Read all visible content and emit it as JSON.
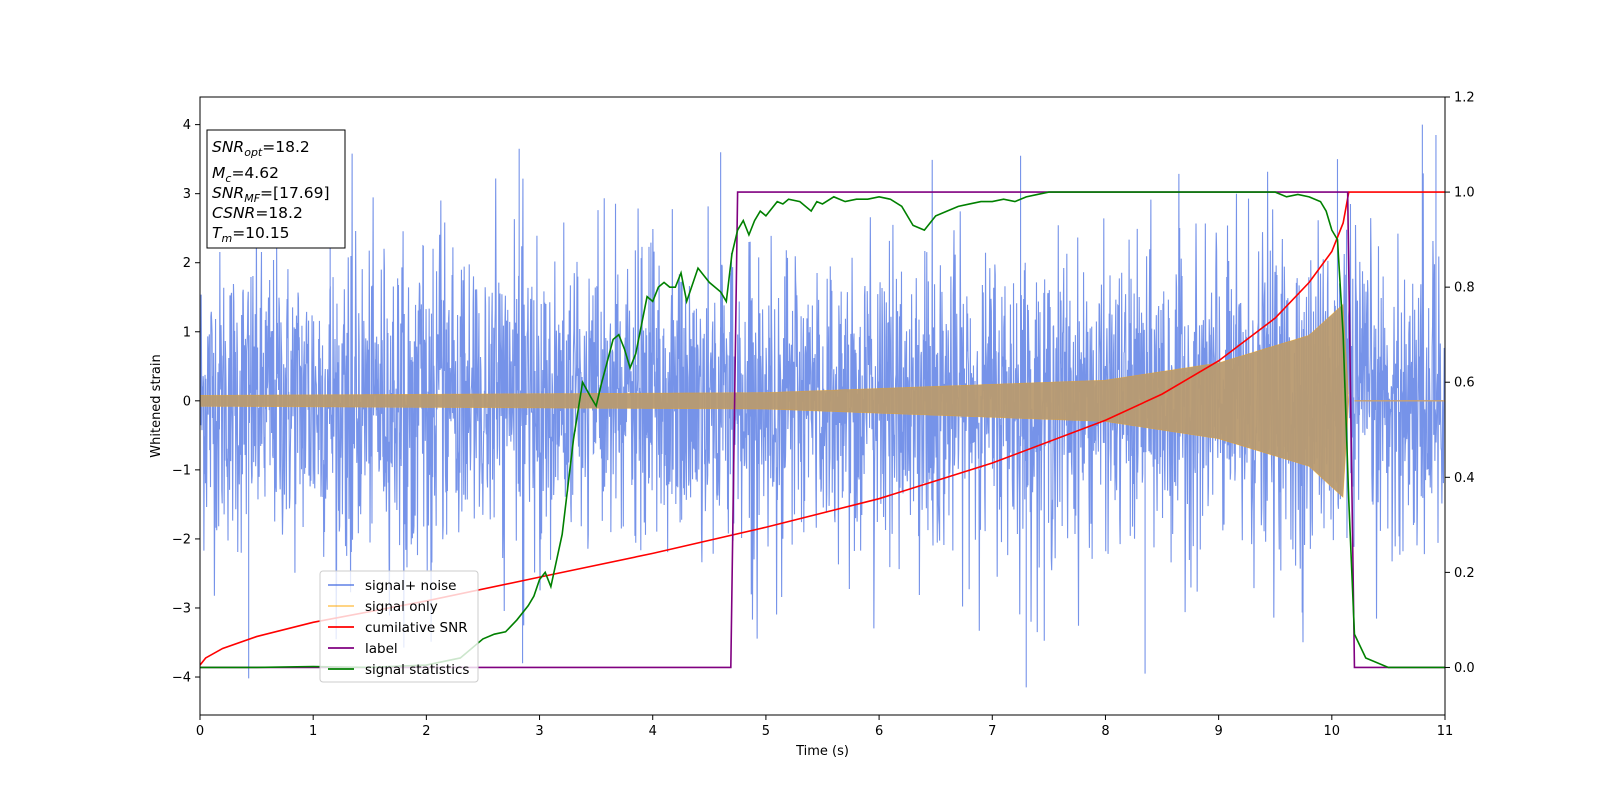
{
  "chart_data": {
    "type": "line",
    "xlabel": "Time (s)",
    "ylabel": "Whitened strain",
    "xlim": [
      0,
      11
    ],
    "ylim": [
      -4.55,
      4.4
    ],
    "y2lim": [
      -0.1,
      1.2
    ],
    "xticks": [
      0,
      1,
      2,
      3,
      4,
      5,
      6,
      7,
      8,
      9,
      10,
      11
    ],
    "yticks": [
      -4,
      -3,
      -2,
      -1,
      0,
      1,
      2,
      3,
      4
    ],
    "y2ticks": [
      "0.0",
      "0.2",
      "0.4",
      "0.6",
      "0.8",
      "1.0",
      "1.2"
    ],
    "grid": false,
    "legend_position": "lower-left",
    "info_box": {
      "snr_opt": {
        "sym": "SNR",
        "sub": "opt",
        "value": "=18.2"
      },
      "mc": {
        "sym": "M",
        "sub": "c",
        "value": "=4.62"
      },
      "snr_mf": {
        "sym": "SNR",
        "sub": "MF",
        "value": "=[17.69]"
      },
      "csnr": {
        "sym": "CSNR",
        "value": "=18.2"
      },
      "tm": {
        "sym": "T",
        "sub": "m",
        "value": "=10.15"
      }
    },
    "series": [
      {
        "name": "signal+ noise",
        "color": "#4169e1",
        "axis": "left",
        "kind": "noise",
        "noise_sigma": 1.05,
        "envelope_t": [
          0,
          5,
          8,
          9,
          9.8,
          10.1,
          10.15
        ],
        "envelope_amp": [
          0.08,
          0.12,
          0.3,
          0.55,
          0.95,
          1.4,
          0
        ],
        "spikes": [
          {
            "x": 0.43,
            "y": -4.02
          },
          {
            "x": 1.15,
            "y": 3.55
          },
          {
            "x": 2.82,
            "y": 3.65
          },
          {
            "x": 2.85,
            "y": -3.8
          },
          {
            "x": 4.6,
            "y": 3.6
          },
          {
            "x": 7.25,
            "y": 3.55
          },
          {
            "x": 7.3,
            "y": -4.15
          },
          {
            "x": 8.35,
            "y": -3.95
          },
          {
            "x": 10.05,
            "y": 3.5
          },
          {
            "x": 10.92,
            "y": 3.85
          },
          {
            "x": 10.8,
            "y": 4.0
          }
        ]
      },
      {
        "name": "signal only",
        "color": "#ffa500",
        "axis": "left",
        "kind": "chirp",
        "envelope_t": [
          0,
          5,
          8,
          9,
          9.8,
          10.1,
          10.15
        ],
        "envelope_amp": [
          0.08,
          0.12,
          0.3,
          0.55,
          0.95,
          1.4,
          0
        ]
      },
      {
        "name": "cumilative SNR",
        "color": "#ff0000",
        "axis": "right",
        "kind": "line",
        "x": [
          0,
          0.05,
          0.2,
          0.5,
          1,
          2,
          3,
          4,
          5,
          6,
          7,
          8,
          8.5,
          9,
          9.5,
          9.8,
          10,
          10.1,
          10.15,
          10.2,
          11
        ],
        "y": [
          0.005,
          0.02,
          0.04,
          0.065,
          0.095,
          0.14,
          0.19,
          0.24,
          0.295,
          0.355,
          0.43,
          0.52,
          0.575,
          0.645,
          0.735,
          0.81,
          0.875,
          0.935,
          1.0,
          1.0,
          1.0
        ]
      },
      {
        "name": "label",
        "color": "#800080",
        "axis": "right",
        "kind": "line",
        "x": [
          0,
          4.69,
          4.75,
          10.14,
          10.2,
          11
        ],
        "y": [
          0,
          0,
          1,
          1,
          0,
          0
        ]
      },
      {
        "name": "signal statistics",
        "color": "#008000",
        "axis": "right",
        "kind": "line",
        "x": [
          0,
          0.5,
          1,
          1.5,
          2,
          2.3,
          2.5,
          2.6,
          2.7,
          2.8,
          2.9,
          2.95,
          3.0,
          3.05,
          3.1,
          3.2,
          3.3,
          3.38,
          3.45,
          3.5,
          3.55,
          3.65,
          3.7,
          3.75,
          3.8,
          3.85,
          3.9,
          3.95,
          4.0,
          4.05,
          4.1,
          4.15,
          4.2,
          4.25,
          4.3,
          4.4,
          4.5,
          4.6,
          4.65,
          4.7,
          4.75,
          4.8,
          4.85,
          4.9,
          4.95,
          5.0,
          5.1,
          5.15,
          5.2,
          5.3,
          5.4,
          5.45,
          5.5,
          5.6,
          5.7,
          5.8,
          5.9,
          6.0,
          6.1,
          6.2,
          6.3,
          6.4,
          6.5,
          6.6,
          6.7,
          6.8,
          6.9,
          7.0,
          7.1,
          7.2,
          7.3,
          7.4,
          7.5,
          8.0,
          8.5,
          9.0,
          9.5,
          9.6,
          9.7,
          9.8,
          9.9,
          9.95,
          10.0,
          10.05,
          10.1,
          10.15,
          10.2,
          10.3,
          10.5,
          11
        ],
        "y": [
          0,
          0,
          0.002,
          0,
          0.005,
          0.02,
          0.06,
          0.07,
          0.075,
          0.1,
          0.13,
          0.15,
          0.185,
          0.2,
          0.17,
          0.28,
          0.48,
          0.6,
          0.57,
          0.55,
          0.6,
          0.69,
          0.7,
          0.67,
          0.63,
          0.66,
          0.72,
          0.78,
          0.77,
          0.8,
          0.81,
          0.8,
          0.8,
          0.83,
          0.77,
          0.84,
          0.81,
          0.79,
          0.77,
          0.87,
          0.92,
          0.94,
          0.91,
          0.94,
          0.96,
          0.95,
          0.98,
          0.975,
          0.985,
          0.98,
          0.96,
          0.98,
          0.975,
          0.99,
          0.98,
          0.985,
          0.985,
          0.99,
          0.985,
          0.97,
          0.93,
          0.92,
          0.95,
          0.96,
          0.97,
          0.975,
          0.98,
          0.98,
          0.985,
          0.98,
          0.99,
          0.995,
          1.0,
          1.0,
          1.0,
          1.0,
          1.0,
          0.99,
          0.995,
          0.99,
          0.98,
          0.96,
          0.92,
          0.9,
          0.7,
          0.35,
          0.07,
          0.02,
          0.0,
          0.0
        ]
      }
    ]
  }
}
